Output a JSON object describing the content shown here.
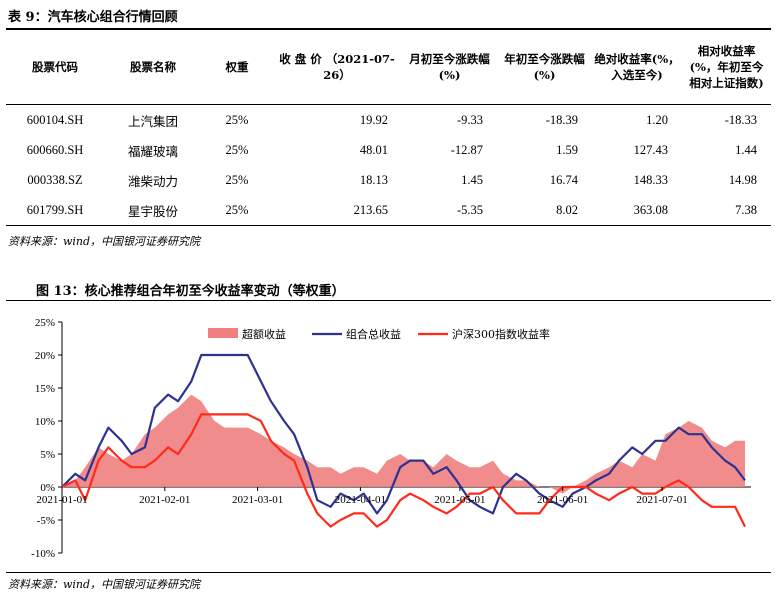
{
  "table": {
    "title": "表 9：汽车核心组合行情回顾",
    "headers": [
      "股票代码",
      "股票名称",
      "权重",
      "收 盘 价 （2021-07-26）",
      "月初至今涨跌幅(%)",
      "年初至今涨跌幅(%)",
      "绝对收益率(%，入选至今)",
      "相对收益率(%，年初至今相对上证指数)"
    ],
    "rows": [
      [
        "600104.SH",
        "上汽集团",
        "25%",
        "19.92",
        "-9.33",
        "-18.39",
        "1.20",
        "-18.33"
      ],
      [
        "600660.SH",
        "福耀玻璃",
        "25%",
        "48.01",
        "-12.87",
        "1.59",
        "127.43",
        "1.44"
      ],
      [
        "000338.SZ",
        "潍柴动力",
        "25%",
        "18.13",
        "1.45",
        "16.74",
        "148.33",
        "14.98"
      ],
      [
        "601799.SH",
        "星宇股份",
        "25%",
        "213.65",
        "-5.35",
        "8.02",
        "363.08",
        "7.38"
      ]
    ],
    "source": "资料来源：wind，中国银河证券研究院"
  },
  "figure": {
    "title": "图 13：核心推荐组合年初至今收益率变动（等权重）",
    "source": "资料来源：wind，中国银河证券研究院"
  },
  "chart_data": {
    "type": "line",
    "title": "",
    "y_ticks": [
      "25%",
      "20%",
      "15%",
      "10%",
      "5%",
      "0%",
      "-5%",
      "-10%"
    ],
    "ylim": [
      -10,
      25
    ],
    "x_ticks": [
      "2021-01-01",
      "2021-02-01",
      "2021-03-01",
      "2021-04-01",
      "2021-05-01",
      "2021-06-01",
      "2021-07-01"
    ],
    "x": [
      "2021-01-01",
      "2021-01-05",
      "2021-01-08",
      "2021-01-12",
      "2021-01-15",
      "2021-01-19",
      "2021-01-22",
      "2021-01-26",
      "2021-01-29",
      "2021-02-02",
      "2021-02-05",
      "2021-02-09",
      "2021-02-12",
      "2021-02-16",
      "2021-02-19",
      "2021-02-23",
      "2021-02-26",
      "2021-03-02",
      "2021-03-05",
      "2021-03-09",
      "2021-03-12",
      "2021-03-16",
      "2021-03-19",
      "2021-03-23",
      "2021-03-26",
      "2021-03-30",
      "2021-04-02",
      "2021-04-06",
      "2021-04-09",
      "2021-04-13",
      "2021-04-16",
      "2021-04-20",
      "2021-04-23",
      "2021-04-27",
      "2021-04-30",
      "2021-05-04",
      "2021-05-07",
      "2021-05-11",
      "2021-05-14",
      "2021-05-18",
      "2021-05-21",
      "2021-05-25",
      "2021-05-28",
      "2021-06-01",
      "2021-06-04",
      "2021-06-08",
      "2021-06-11",
      "2021-06-15",
      "2021-06-18",
      "2021-06-22",
      "2021-06-25",
      "2021-06-29",
      "2021-07-02",
      "2021-07-06",
      "2021-07-09",
      "2021-07-13",
      "2021-07-16",
      "2021-07-20",
      "2021-07-23",
      "2021-07-26"
    ],
    "series": [
      {
        "name": "超额收益",
        "type": "area",
        "color": "#f08080",
        "values": [
          0,
          1,
          3,
          6,
          5,
          4,
          5,
          8,
          9,
          11,
          12,
          14,
          13,
          10,
          9,
          9,
          9,
          8,
          7,
          6,
          5,
          4,
          3,
          3,
          2,
          3,
          3,
          2,
          4,
          5,
          4,
          4,
          3,
          5,
          4,
          3,
          3,
          4,
          2,
          1,
          1,
          0,
          0,
          -1,
          0,
          1,
          2,
          3,
          4,
          3,
          5,
          4,
          8,
          9,
          10,
          9,
          7,
          6,
          7,
          7
        ]
      },
      {
        "name": "组合总收益",
        "type": "line",
        "color": "#2e3192",
        "values": [
          0,
          2,
          1,
          6,
          9,
          7,
          5,
          6,
          12,
          14,
          13,
          16,
          20,
          20,
          20,
          20,
          20,
          16,
          13,
          10,
          8,
          3,
          -2,
          -3,
          -1,
          -2,
          -1,
          -4,
          -2,
          3,
          4,
          4,
          2,
          3,
          1,
          -2,
          -3,
          -4,
          0,
          2,
          1,
          -1,
          -2,
          -3,
          -1,
          0,
          1,
          2,
          4,
          6,
          5,
          7,
          7,
          9,
          8,
          8,
          6,
          4,
          3,
          1
        ]
      },
      {
        "name": "沪深300指数收益率",
        "type": "line",
        "color": "#ff2a1a",
        "values": [
          0,
          1,
          -2,
          4,
          6,
          4,
          3,
          3,
          4,
          6,
          5,
          8,
          11,
          11,
          11,
          11,
          11,
          10,
          7,
          5,
          4,
          -1,
          -4,
          -6,
          -5,
          -4,
          -4,
          -6,
          -5,
          -2,
          -1,
          -2,
          -3,
          -4,
          -3,
          -1,
          -1,
          0,
          -2,
          -4,
          -4,
          -4,
          -2,
          0,
          0,
          0,
          -1,
          -2,
          -1,
          0,
          -1,
          -1,
          0,
          1,
          0,
          -2,
          -3,
          -3,
          -3,
          -6
        ]
      }
    ],
    "legend_position": "top"
  }
}
